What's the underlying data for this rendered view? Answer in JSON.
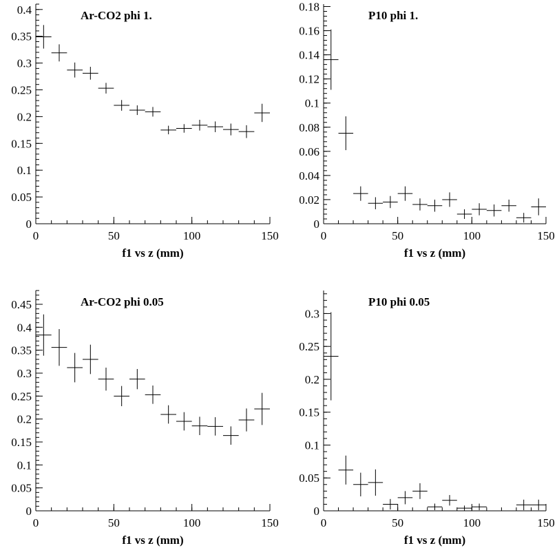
{
  "chart_data": [
    {
      "type": "scatter",
      "title": "Ar-CO2 phi  1.",
      "xlabel": "f1 vs z (mm)",
      "ylabel": "",
      "xlim": [
        0,
        150
      ],
      "ylim": [
        0,
        0.41
      ],
      "xticks": [
        0,
        50,
        100,
        150
      ],
      "yticks": [
        0,
        0.05,
        0.1,
        0.15,
        0.2,
        0.25,
        0.3,
        0.35,
        0.4
      ],
      "ytick_labels": [
        "0",
        "0.05",
        "0.1",
        "0.15",
        "0.2",
        "0.25",
        "0.3",
        "0.35",
        "0.4"
      ],
      "xtick_labels": [
        "0",
        "50",
        "100",
        "150"
      ],
      "grid": false,
      "x": [
        5,
        15,
        25,
        35,
        45,
        55,
        65,
        75,
        85,
        95,
        105,
        115,
        125,
        135,
        145
      ],
      "xerr": [
        5,
        5,
        5,
        5,
        5,
        5,
        5,
        5,
        5,
        5,
        5,
        5,
        5,
        5,
        5
      ],
      "y": [
        0.349,
        0.319,
        0.287,
        0.281,
        0.253,
        0.221,
        0.212,
        0.209,
        0.175,
        0.178,
        0.184,
        0.181,
        0.176,
        0.172,
        0.207
      ],
      "yerr": [
        0.022,
        0.016,
        0.014,
        0.012,
        0.01,
        0.01,
        0.009,
        0.009,
        0.008,
        0.008,
        0.01,
        0.01,
        0.011,
        0.012,
        0.017
      ]
    },
    {
      "type": "scatter",
      "title": "P10 phi  1.",
      "xlabel": "f1 vs z (mm)",
      "ylabel": "",
      "xlim": [
        0,
        150
      ],
      "ylim": [
        0,
        0.182
      ],
      "xticks": [
        0,
        50,
        100,
        150
      ],
      "yticks": [
        0,
        0.02,
        0.04,
        0.06,
        0.08,
        0.1,
        0.12,
        0.14,
        0.16,
        0.18
      ],
      "ytick_labels": [
        "0",
        "0.02",
        "0.04",
        "0.06",
        "0.08",
        "0.1",
        "0.12",
        "0.14",
        "0.16",
        "0.18"
      ],
      "xtick_labels": [
        "0",
        "50",
        "100",
        "150"
      ],
      "grid": false,
      "x": [
        5,
        15,
        25,
        35,
        45,
        55,
        65,
        75,
        85,
        95,
        105,
        115,
        125,
        135,
        145
      ],
      "xerr": [
        5,
        5,
        5,
        5,
        5,
        5,
        5,
        5,
        5,
        5,
        5,
        5,
        5,
        5,
        5
      ],
      "y": [
        0.136,
        0.075,
        0.025,
        0.017,
        0.018,
        0.025,
        0.016,
        0.015,
        0.02,
        0.008,
        0.012,
        0.011,
        0.015,
        0.005,
        0.014
      ],
      "yerr": [
        0.025,
        0.014,
        0.006,
        0.005,
        0.005,
        0.006,
        0.005,
        0.005,
        0.006,
        0.004,
        0.005,
        0.005,
        0.005,
        0.004,
        0.007
      ]
    },
    {
      "type": "scatter",
      "title": "Ar-CO2 phi  0.05",
      "xlabel": "f1 vs z (mm)",
      "ylabel": "",
      "xlim": [
        0,
        150
      ],
      "ylim": [
        0,
        0.48
      ],
      "xticks": [
        0,
        50,
        100,
        150
      ],
      "yticks": [
        0,
        0.05,
        0.1,
        0.15,
        0.2,
        0.25,
        0.3,
        0.35,
        0.4,
        0.45
      ],
      "ytick_labels": [
        "0",
        "0.05",
        "0.1",
        "0.15",
        "0.2",
        "0.25",
        "0.3",
        "0.35",
        "0.4",
        "0.45"
      ],
      "xtick_labels": [
        "0",
        "50",
        "100",
        "150"
      ],
      "grid": false,
      "x": [
        5,
        15,
        25,
        35,
        45,
        55,
        65,
        75,
        85,
        95,
        105,
        115,
        125,
        135,
        145
      ],
      "xerr": [
        5,
        5,
        5,
        5,
        5,
        5,
        5,
        5,
        5,
        5,
        5,
        5,
        5,
        5,
        5
      ],
      "y": [
        0.383,
        0.356,
        0.312,
        0.33,
        0.287,
        0.25,
        0.287,
        0.253,
        0.21,
        0.195,
        0.185,
        0.184,
        0.164,
        0.198,
        0.222
      ],
      "yerr": [
        0.045,
        0.04,
        0.032,
        0.032,
        0.025,
        0.022,
        0.022,
        0.02,
        0.02,
        0.02,
        0.02,
        0.02,
        0.02,
        0.025,
        0.035
      ]
    },
    {
      "type": "scatter",
      "title": "P10 phi  0.05",
      "xlabel": "f1 vs z (mm)",
      "ylabel": "",
      "xlim": [
        0,
        150
      ],
      "ylim": [
        0,
        0.335
      ],
      "xticks": [
        0,
        50,
        100,
        150
      ],
      "yticks": [
        0,
        0.05,
        0.1,
        0.15,
        0.2,
        0.25,
        0.3
      ],
      "ytick_labels": [
        "0",
        "0.05",
        "0.1",
        "0.15",
        "0.2",
        "0.25",
        "0.3"
      ],
      "xtick_labels": [
        "0",
        "50",
        "100",
        "150"
      ],
      "grid": false,
      "x": [
        5,
        15,
        25,
        35,
        45,
        55,
        65,
        75,
        85,
        95,
        105,
        135,
        145
      ],
      "xerr": [
        5,
        5,
        5,
        5,
        5,
        5,
        5,
        5,
        5,
        5,
        5,
        5,
        5
      ],
      "y": [
        0.235,
        0.062,
        0.04,
        0.043,
        0.01,
        0.02,
        0.03,
        0.006,
        0.016,
        0.004,
        0.006,
        0.009,
        0.009
      ],
      "yerr": [
        0.067,
        0.022,
        0.018,
        0.02,
        0.008,
        0.01,
        0.012,
        0.005,
        0.008,
        0.004,
        0.005,
        0.008,
        0.008
      ]
    }
  ]
}
